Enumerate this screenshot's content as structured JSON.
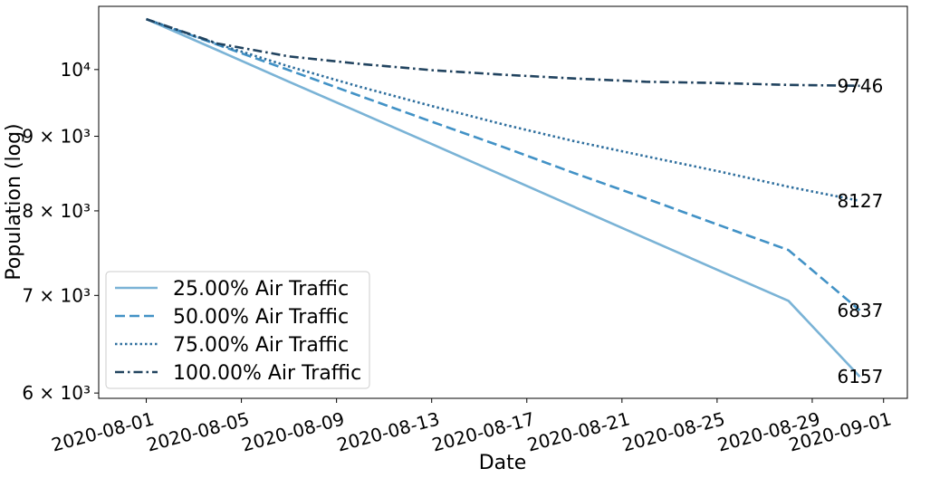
{
  "chart_data": {
    "type": "line",
    "title": "",
    "xlabel": "Date",
    "ylabel": "Population (log)",
    "yscale": "log",
    "ylim": [
      5950,
      11050
    ],
    "xlim": [
      "2020-07-30",
      "2020-09-02"
    ],
    "grid": false,
    "legend_position": "lower-left",
    "x_ticks": [
      "2020-08-01",
      "2020-08-05",
      "2020-08-09",
      "2020-08-13",
      "2020-08-17",
      "2020-08-21",
      "2020-08-25",
      "2020-08-29",
      "2020-09-01"
    ],
    "y_ticks": [
      {
        "value": 6000,
        "label": "6 × 10³"
      },
      {
        "value": 7000,
        "label": "7 × 10³"
      },
      {
        "value": 8000,
        "label": "8 × 10³"
      },
      {
        "value": 9000,
        "label": "9 × 10³"
      },
      {
        "value": 10000,
        "label": "10⁴"
      }
    ],
    "x": [
      "2020-08-01",
      "2020-08-04",
      "2020-08-07",
      "2020-08-10",
      "2020-08-13",
      "2020-08-16",
      "2020-08-19",
      "2020-08-22",
      "2020-08-25",
      "2020-08-28",
      "2020-08-31"
    ],
    "series": [
      {
        "name": "25.00% Air Traffic",
        "color": "#7ab3d6",
        "dash": "solid",
        "values": [
          10830,
          10310,
          9810,
          9340,
          8890,
          8460,
          8050,
          7660,
          7290,
          6940,
          6157
        ]
      },
      {
        "name": "50.00% Air Traffic",
        "color": "#4292c6",
        "dash": "dashed",
        "values": [
          10830,
          10400,
          9990,
          9590,
          9210,
          8850,
          8490,
          8160,
          7830,
          7520,
          6837
        ]
      },
      {
        "name": "75.00% Air Traffic",
        "color": "#2f6f9e",
        "dash": "dotted",
        "values": [
          10830,
          10410,
          10050,
          9730,
          9440,
          9170,
          8930,
          8720,
          8520,
          8310,
          8127
        ]
      },
      {
        "name": "100.00% Air Traffic",
        "color": "#21435f",
        "dash": "dashdot",
        "values": [
          10830,
          10420,
          10210,
          10090,
          9990,
          9920,
          9860,
          9810,
          9790,
          9760,
          9746
        ]
      }
    ],
    "end_labels": [
      "6157",
      "6837",
      "8127",
      "9746"
    ]
  }
}
